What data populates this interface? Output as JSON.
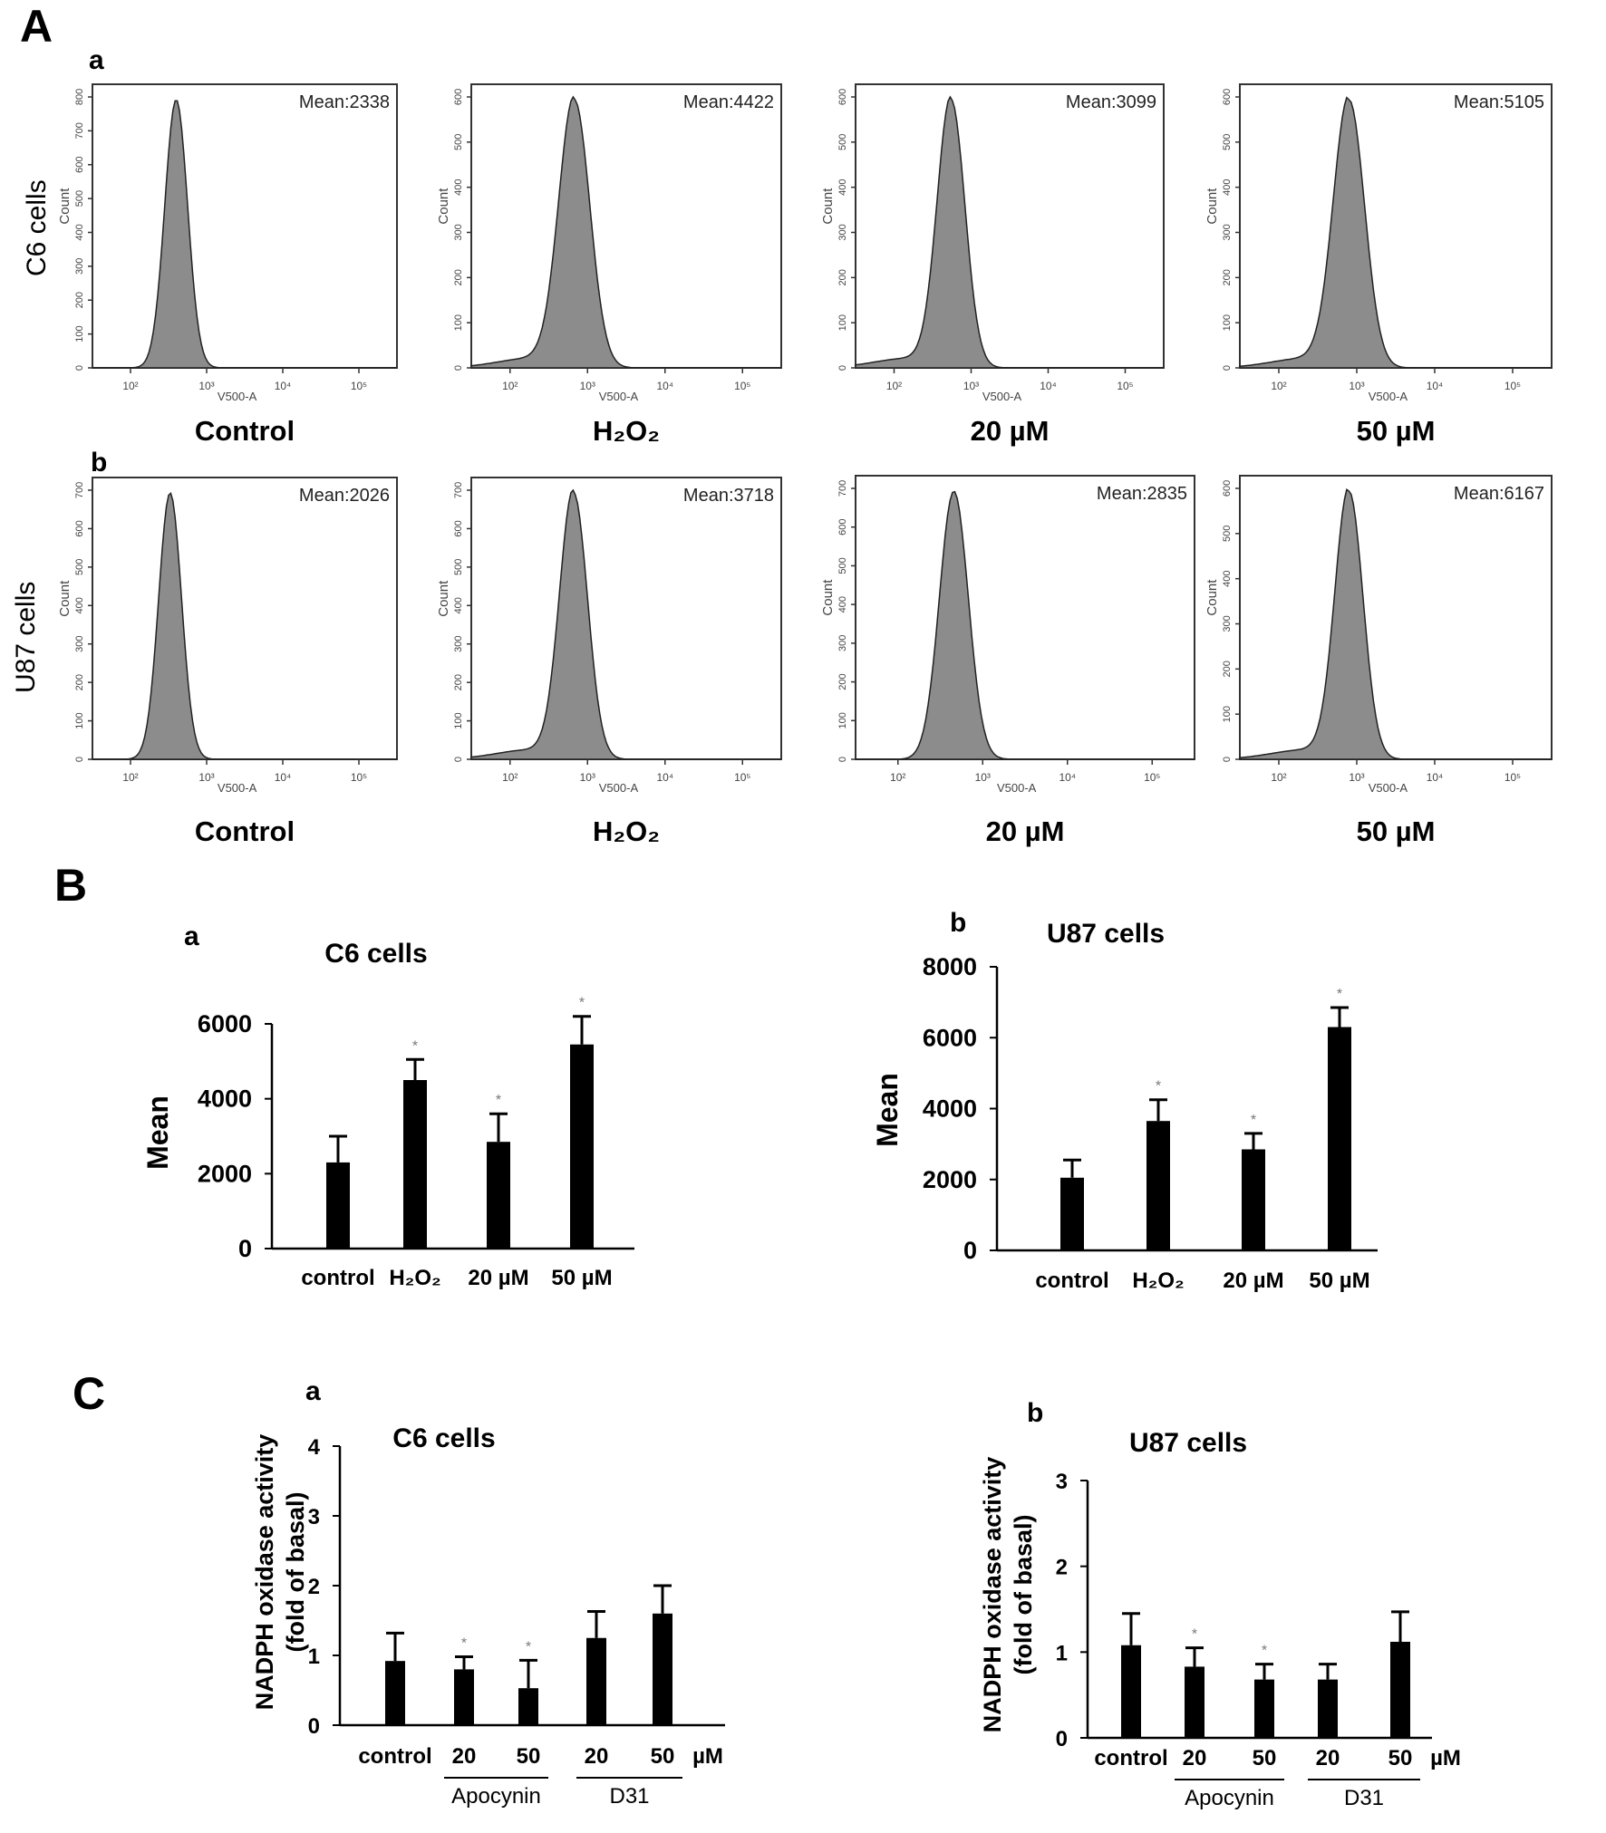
{
  "figure": {
    "panel_A_label": "A",
    "panel_B_label": "B",
    "panel_C_label": "C"
  },
  "panel_A": {
    "rows": [
      {
        "sub_label": "a",
        "row_label": "C6 cells",
        "plots": [
          {
            "condition": "Control",
            "mean_text": "Mean:2338",
            "peak_log": 2.6,
            "width": 0.15,
            "ymax": 800,
            "yticks": [
              "0",
              "100",
              "200",
              "300",
              "400",
              "500",
              "600",
              "700",
              "800"
            ],
            "shoulder": false
          },
          {
            "condition": "H₂O₂",
            "mean_text": "Mean:4422",
            "peak_log": 2.83,
            "width": 0.2,
            "ymax": 600,
            "yticks": [
              "0",
              "100",
              "200",
              "300",
              "400",
              "500",
              "600"
            ],
            "shoulder": true
          },
          {
            "condition": "20 µM",
            "mean_text": "Mean:3099",
            "peak_log": 2.74,
            "width": 0.18,
            "ymax": 600,
            "yticks": [
              "0",
              "100",
              "200",
              "300",
              "400",
              "500",
              "600"
            ],
            "shoulder": true
          },
          {
            "condition": "50 µM",
            "mean_text": "Mean:5105",
            "peak_log": 2.9,
            "width": 0.2,
            "ymax": 600,
            "yticks": [
              "0",
              "100",
              "200",
              "300",
              "400",
              "500",
              "600"
            ],
            "shoulder": true
          }
        ]
      },
      {
        "sub_label": "b",
        "row_label": "U87 cells",
        "plots": [
          {
            "condition": "Control",
            "mean_text": "Mean:2026",
            "peak_log": 2.52,
            "width": 0.15,
            "ymax": 700,
            "yticks": [
              "0",
              "100",
              "200",
              "300",
              "400",
              "500",
              "600",
              "700"
            ],
            "shoulder": false
          },
          {
            "condition": "H₂O₂",
            "mean_text": "Mean:3718",
            "peak_log": 2.82,
            "width": 0.18,
            "ymax": 700,
            "yticks": [
              "0",
              "100",
              "200",
              "300",
              "400",
              "500",
              "600",
              "700"
            ],
            "shoulder": true
          },
          {
            "condition": "20 µM",
            "mean_text": "Mean:2835",
            "peak_log": 2.66,
            "width": 0.17,
            "ymax": 700,
            "yticks": [
              "0",
              "100",
              "200",
              "300",
              "400",
              "500",
              "600",
              "700"
            ],
            "shoulder": false
          },
          {
            "condition": "50 µM",
            "mean_text": "Mean:6167",
            "peak_log": 2.9,
            "width": 0.18,
            "ymax": 600,
            "yticks": [
              "0",
              "100",
              "200",
              "300",
              "400",
              "500",
              "600"
            ],
            "shoulder": true
          }
        ]
      }
    ],
    "x_axis_label": "V500-A",
    "y_axis_label": "Count",
    "x_tick_labels": [
      "10²",
      "10³",
      "10⁴",
      "10⁵"
    ],
    "x_tick_values": [
      2,
      3,
      4,
      5
    ],
    "x_range_log": [
      1.5,
      5.5
    ]
  },
  "chart_data": [
    {
      "type": "bar",
      "panel": "B-a",
      "title": "C6 cells",
      "sub_label": "a",
      "ylabel": "Mean",
      "xlabel": "",
      "categories": [
        "control",
        "H₂O₂",
        "20 µM",
        "50 µM"
      ],
      "values": [
        2300,
        4500,
        2850,
        5450
      ],
      "errors": [
        700,
        550,
        750,
        750
      ],
      "significance": [
        "",
        "*",
        "*",
        "*"
      ],
      "ylim": [
        0,
        6000
      ],
      "yticks": [
        0,
        2000,
        4000,
        6000
      ],
      "ytick_labels": [
        "0",
        "2000",
        "4000",
        "6000"
      ],
      "grid": false
    },
    {
      "type": "bar",
      "panel": "B-b",
      "title": "U87 cells",
      "sub_label": "b",
      "ylabel": "Mean",
      "xlabel": "",
      "categories": [
        "control",
        "H₂O₂",
        "20 µM",
        "50  µM"
      ],
      "values": [
        2050,
        3650,
        2850,
        6300
      ],
      "errors": [
        500,
        600,
        450,
        550
      ],
      "significance": [
        "",
        "*",
        "*",
        "*"
      ],
      "ylim": [
        0,
        8000
      ],
      "yticks": [
        0,
        2000,
        4000,
        6000,
        8000
      ],
      "ytick_labels": [
        "0",
        "2000",
        "4000",
        "6000",
        "8000"
      ],
      "grid": false
    },
    {
      "type": "bar",
      "panel": "C-a",
      "title": "C6 cells",
      "sub_label": "a",
      "ylabel": "NADPH oxidase activity\n(fold of basal)",
      "xlabel": "",
      "categories": [
        "control",
        "20",
        "50",
        "20",
        "50"
      ],
      "unit_label": "µM",
      "group_labels": [
        "Apocynin",
        "D31"
      ],
      "values": [
        0.92,
        0.8,
        0.53,
        1.25,
        1.6
      ],
      "errors": [
        0.4,
        0.18,
        0.4,
        0.38,
        0.4
      ],
      "significance": [
        "",
        "*",
        "*",
        "",
        ""
      ],
      "ylim": [
        0,
        4
      ],
      "yticks": [
        0,
        1,
        2,
        3,
        4
      ],
      "ytick_labels": [
        "0",
        "1",
        "2",
        "3",
        "4"
      ],
      "grid": false
    },
    {
      "type": "bar",
      "panel": "C-b",
      "title": "U87 cells",
      "sub_label": "b",
      "ylabel": "NADPH oxidase activity\n(fold of basal)",
      "xlabel": "",
      "categories": [
        "control",
        "20",
        "50",
        "20",
        "50"
      ],
      "unit_label": "µM",
      "group_labels": [
        "Apocynin",
        "D31"
      ],
      "values": [
        1.08,
        0.83,
        0.68,
        0.68,
        1.12
      ],
      "errors": [
        0.37,
        0.22,
        0.18,
        0.18,
        0.35
      ],
      "significance": [
        "",
        "*",
        "*",
        "",
        ""
      ],
      "ylim": [
        0,
        3
      ],
      "yticks": [
        0,
        1,
        2,
        3
      ],
      "ytick_labels": [
        "0",
        "1",
        "2",
        "3"
      ],
      "grid": false
    }
  ]
}
